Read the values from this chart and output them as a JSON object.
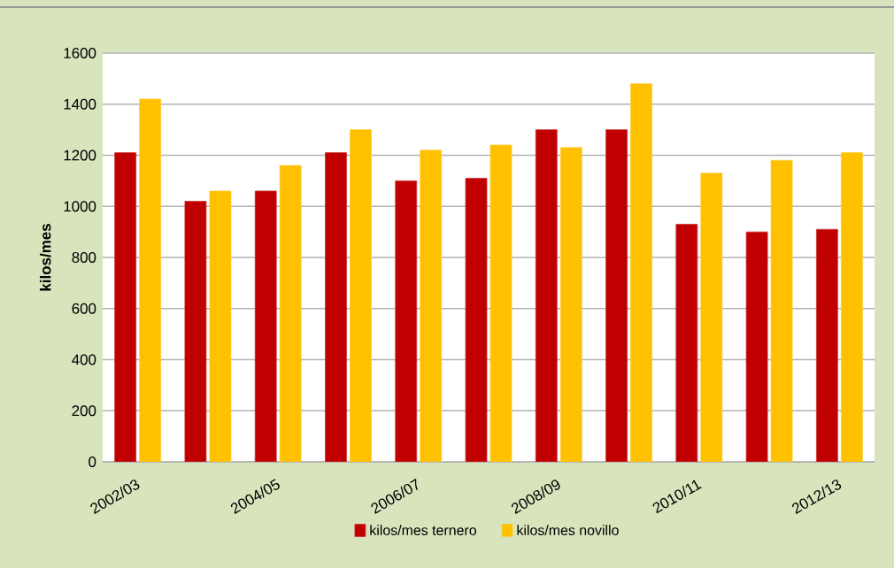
{
  "chart_data": {
    "type": "bar",
    "ylabel": "kilos/mes",
    "categories": [
      "2002/03",
      null,
      "2004/05",
      null,
      "2006/07",
      null,
      "2008/09",
      null,
      "2010/11",
      null,
      "2012/13"
    ],
    "series": [
      {
        "name": "kilos/mes ternero",
        "color": "#c00000",
        "values": [
          1210,
          1020,
          1060,
          1210,
          1100,
          1110,
          1300,
          1300,
          930,
          900,
          910
        ]
      },
      {
        "name": "kilos/mes novillo",
        "color": "#ffc000",
        "values": [
          1420,
          1060,
          1160,
          1300,
          1220,
          1240,
          1230,
          1480,
          1130,
          1180,
          1210
        ]
      }
    ],
    "ylim": [
      0,
      1600
    ],
    "yticks": [
      0,
      200,
      400,
      600,
      800,
      1000,
      1200,
      1400,
      1600
    ],
    "grid": "y",
    "legend": "bottom"
  }
}
